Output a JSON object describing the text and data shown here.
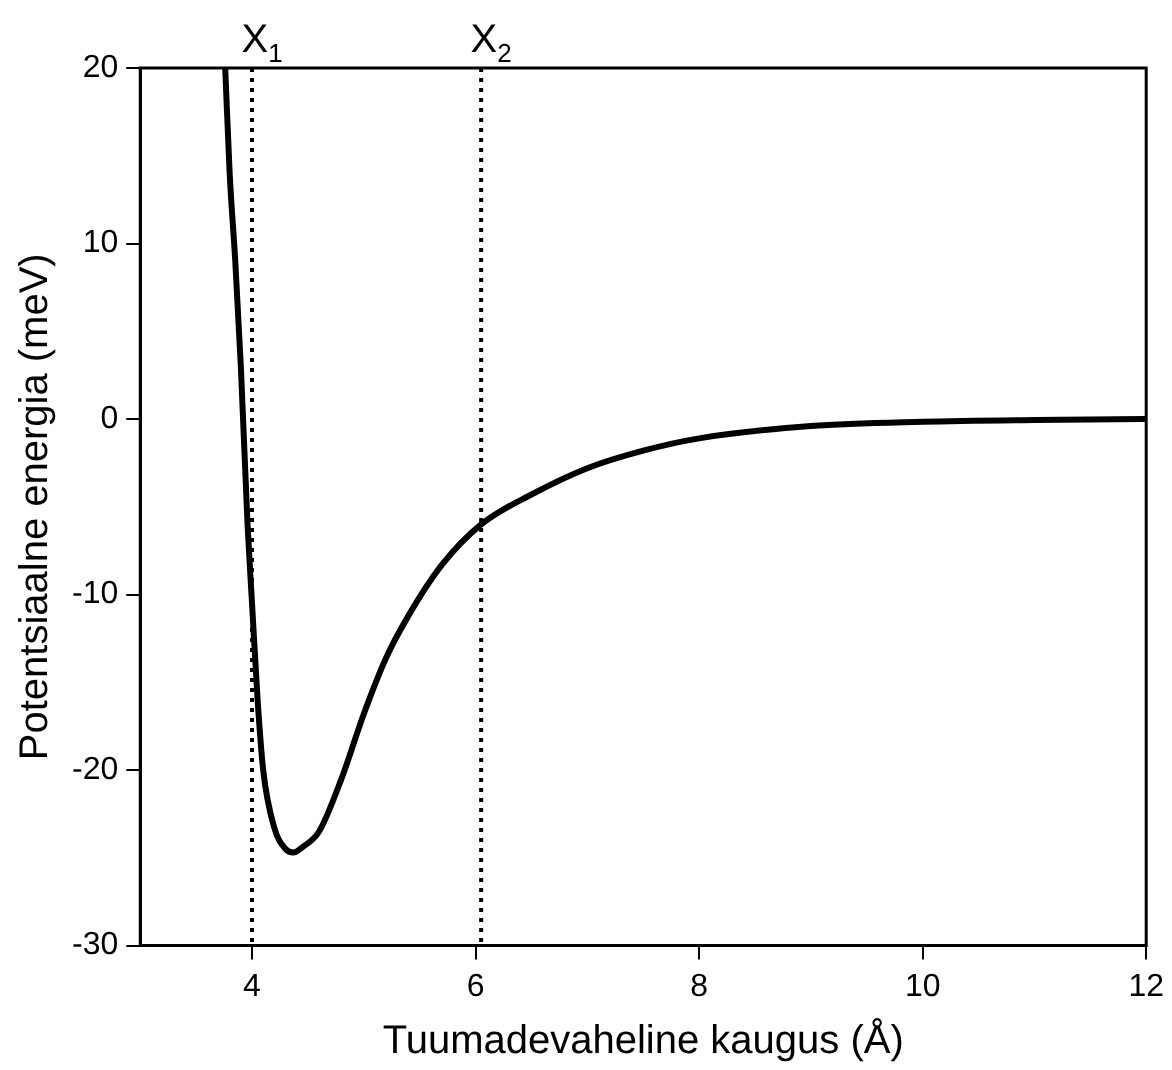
{
  "chart_data": {
    "type": "line",
    "xlabel": "Tuumadevaheline kaugus (Å)",
    "ylabel": "Potentsiaalne energia (meV)",
    "xlim": [
      3,
      12
    ],
    "xticks": [
      4,
      6,
      8,
      10,
      12
    ],
    "ylim": [
      -30,
      20
    ],
    "yticks": [
      -30,
      -20,
      -10,
      0,
      10,
      20
    ],
    "grid": false,
    "legend": false,
    "marker": "none",
    "line_style": "solid",
    "series": [
      {
        "color": "#000000",
        "x": [
          3.76,
          3.8,
          3.85,
          3.9,
          3.96,
          4.0,
          4.05,
          4.1,
          4.2,
          4.3,
          4.37,
          4.45,
          4.6,
          4.8,
          5.0,
          5.2,
          5.4,
          5.7,
          6.05,
          6.5,
          7,
          7.5,
          8,
          9,
          10,
          11,
          12
        ],
        "values": [
          20,
          14,
          9,
          3,
          -6,
          -10.5,
          -16,
          -20,
          -23.3,
          -24.5,
          -24.7,
          -24.4,
          -23.5,
          -20.5,
          -16.8,
          -13.6,
          -11.2,
          -8.3,
          -6.0,
          -4.3,
          -2.8,
          -1.8,
          -1.1,
          -0.4,
          -0.15,
          -0.05,
          0
        ]
      }
    ],
    "ref_lines": [
      {
        "axis": "x",
        "value": 4,
        "label": "X$_{1}$",
        "line_style": "dotted",
        "color": "#000000"
      },
      {
        "axis": "x",
        "value": 6.05,
        "label": "X$_{2}$",
        "line_style": "dotted",
        "color": "#000000"
      }
    ]
  }
}
